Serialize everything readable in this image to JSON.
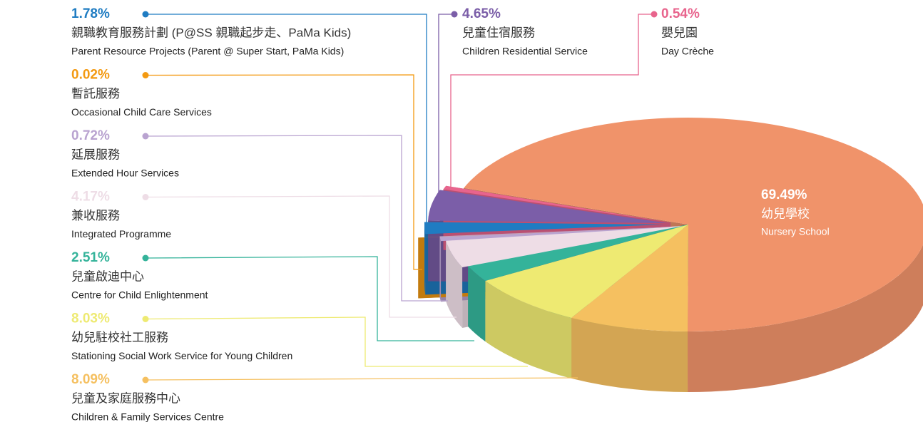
{
  "chart_data": {
    "type": "pie3d",
    "categories": [
      "幼兒學校",
      "兒童及家庭服務中心",
      "幼兒駐校社工服務",
      "兒童啟迪中心",
      "兼收服務",
      "延展服務",
      "暫託服務",
      "親職教育服務計劃 (P@SS 親職起步走、PaMa Kids)",
      "兒童住宿服務",
      "嬰兒園"
    ],
    "categories_en": [
      "Nursery School",
      "Children & Family Services Centre",
      "Stationing Social Work Service for Young Children",
      "Centre for Child Enlightenment",
      "Integrated Programme",
      "Extended Hour Services",
      "Occasional Child Care Services",
      "Parent Resource Projects (Parent @ Super Start, PaMa Kids)",
      "Children Residential Service",
      "Day Crèche"
    ],
    "values": [
      69.49,
      8.09,
      8.03,
      2.51,
      4.17,
      0.72,
      0.02,
      1.78,
      4.65,
      0.54
    ],
    "value_labels": [
      "69.49%",
      "8.09%",
      "8.03%",
      "2.51%",
      "4.17%",
      "0.72%",
      "0.02%",
      "1.78%",
      "4.65%",
      "0.54%"
    ],
    "colors": [
      "#f0936a",
      "#f5c060",
      "#eeea72",
      "#34b39a",
      "#eedde6",
      "#b9a3d0",
      "#f39a12",
      "#1f7cc2",
      "#7b5ea8",
      "#e8648d"
    ]
  }
}
